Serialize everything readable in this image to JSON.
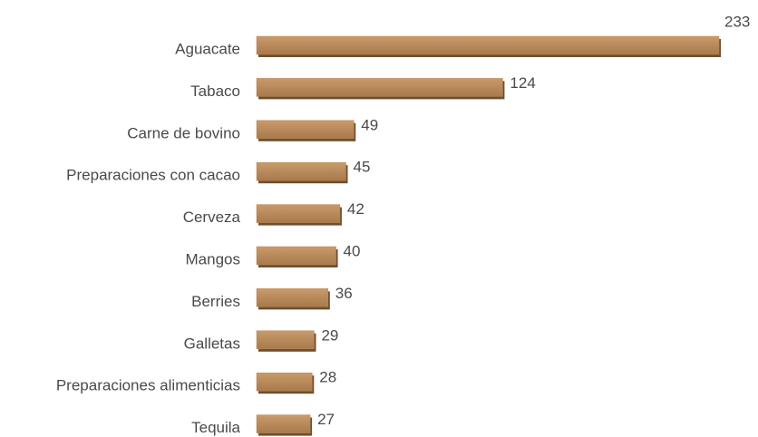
{
  "chart_data": {
    "type": "bar",
    "orientation": "horizontal",
    "categories": [
      "Aguacate",
      "Tabaco",
      "Carne de bovino",
      "Preparaciones con cacao",
      "Cerveza",
      "Mangos",
      "Berries",
      "Galletas",
      "Preparaciones alimenticias",
      "Tequila"
    ],
    "values": [
      233,
      124,
      49,
      45,
      42,
      40,
      36,
      29,
      28,
      27
    ],
    "color": "#b98a5b"
  }
}
